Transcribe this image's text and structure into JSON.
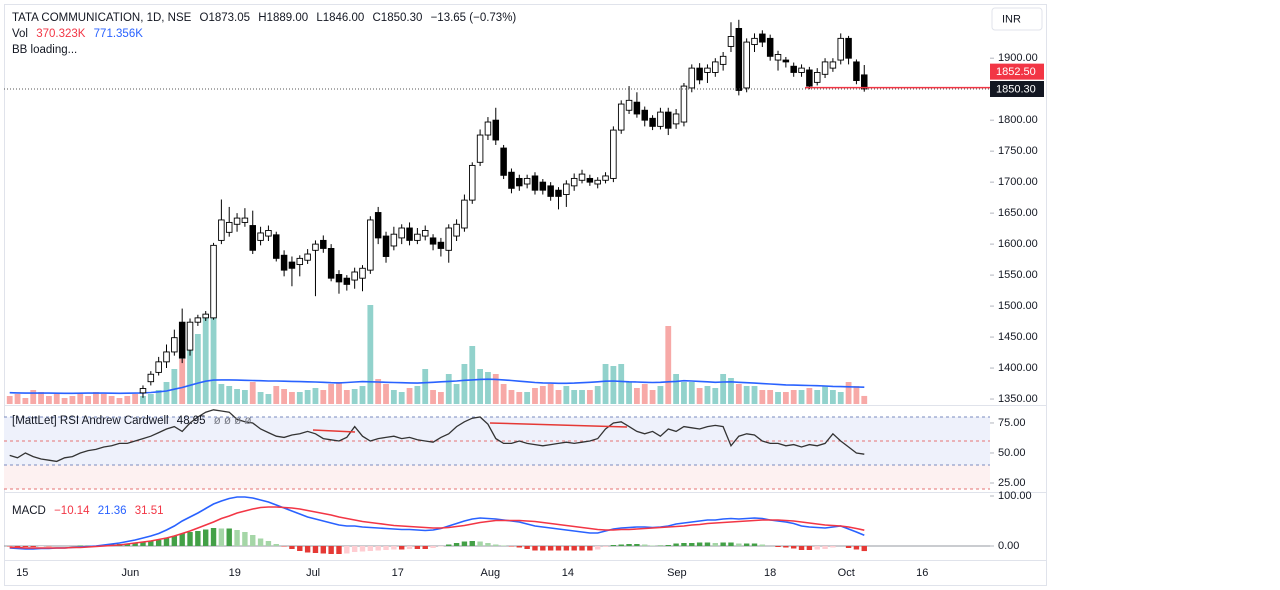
{
  "chart_data": {
    "type": "candlestick",
    "header": {
      "symbol": "TATA COMMUNICATION, 1D, NSE",
      "open_label": "O1873.05",
      "high_label": "H1889.00",
      "low_label": "L1846.00",
      "close_label": "C1850.30",
      "change_label": "−13.65 (−0.73%)"
    },
    "currency": "INR",
    "bb_label": "BB loading...",
    "xticks": [
      {
        "value": 1.6,
        "label": "15"
      },
      {
        "value": 15.4,
        "label": "Jun"
      },
      {
        "value": 28.7,
        "label": "19"
      },
      {
        "value": 38.7,
        "label": "Jul"
      },
      {
        "value": 49.5,
        "label": "17"
      },
      {
        "value": 61.3,
        "label": "Aug"
      },
      {
        "value": 71.2,
        "label": "14"
      },
      {
        "value": 85.1,
        "label": "Sep"
      },
      {
        "value": 97,
        "label": "18"
      },
      {
        "value": 106.7,
        "label": "Oct"
      },
      {
        "value": 116.4,
        "label": "16"
      }
    ],
    "open": [
      null,
      null,
      null,
      null,
      null,
      null,
      null,
      null,
      null,
      null,
      null,
      null,
      null,
      null,
      null,
      null,
      null,
      1360,
      1378,
      1393,
      1410,
      1426,
      1474,
      1429,
      1474,
      1481,
      1481,
      1606,
      1619,
      1632,
      1635,
      1630,
      1606,
      1613,
      1615,
      1582,
      1571,
      1567,
      1574,
      1590,
      1606,
      1593,
      1551,
      1545,
      1542,
      1545,
      1558,
      1651,
      1613,
      1597,
      1610,
      1626,
      1606,
      1613,
      1610,
      1603,
      1590,
      1613,
      1626,
      1671,
      1732,
      1776,
      1800,
      1755,
      1716,
      1706,
      1697,
      1710,
      1700,
      1694,
      1687,
      1680,
      1694,
      1703,
      1706,
      1697,
      1703,
      1706,
      1784,
      1816,
      1829,
      1816,
      1803,
      1790,
      1813,
      1794,
      1797,
      1852,
      1884,
      1877,
      1877,
      1890,
      1919,
      1948,
      1852,
      1922,
      1939,
      1932,
      1897,
      1897,
      1887,
      1877,
      1881,
      1861,
      1874,
      1884,
      1897,
      1932,
      1894,
      1873.05
    ],
    "high": [
      null,
      null,
      null,
      null,
      null,
      null,
      null,
      null,
      null,
      null,
      null,
      null,
      null,
      null,
      null,
      null,
      null,
      1372,
      1395,
      1418,
      1438,
      1462,
      1496,
      1480,
      1486,
      1492,
      1602,
      1672,
      1660,
      1650,
      1658,
      1654,
      1628,
      1630,
      1620,
      1590,
      1580,
      1582,
      1592,
      1606,
      1614,
      1600,
      1558,
      1550,
      1562,
      1566,
      1645,
      1660,
      1620,
      1628,
      1632,
      1635,
      1626,
      1630,
      1616,
      1610,
      1632,
      1640,
      1680,
      1732,
      1785,
      1805,
      1820,
      1760,
      1722,
      1712,
      1712,
      1716,
      1705,
      1700,
      1692,
      1703,
      1714,
      1720,
      1712,
      1708,
      1716,
      1790,
      1832,
      1855,
      1845,
      1822,
      1808,
      1820,
      1820,
      1818,
      1860,
      1890,
      1892,
      1890,
      1900,
      1910,
      1958,
      1962,
      1932,
      1940,
      1945,
      1938,
      1912,
      1902,
      1893,
      1890,
      1886,
      1884,
      1900,
      1900,
      1940,
      1936,
      1898,
      1889
    ],
    "low": [
      null,
      null,
      null,
      null,
      null,
      null,
      null,
      null,
      null,
      null,
      null,
      null,
      null,
      null,
      null,
      null,
      null,
      1352,
      1372,
      1388,
      1400,
      1420,
      1408,
      1420,
      1468,
      1476,
      1478,
      1600,
      1612,
      1620,
      1628,
      1584,
      1598,
      1605,
      1572,
      1548,
      1532,
      1548,
      1568,
      1516,
      1586,
      1540,
      1520,
      1525,
      1528,
      1524,
      1552,
      1600,
      1570,
      1590,
      1600,
      1598,
      1600,
      1606,
      1590,
      1580,
      1570,
      1605,
      1620,
      1665,
      1726,
      1768,
      1760,
      1705,
      1682,
      1686,
      1690,
      1680,
      1680,
      1670,
      1656,
      1660,
      1686,
      1698,
      1694,
      1690,
      1698,
      1700,
      1778,
      1810,
      1804,
      1790,
      1784,
      1785,
      1776,
      1786,
      1790,
      1845,
      1858,
      1860,
      1870,
      1880,
      1910,
      1840,
      1845,
      1910,
      1918,
      1896,
      1880,
      1885,
      1870,
      1870,
      1850,
      1856,
      1868,
      1878,
      1890,
      1890,
      1858,
      1846
    ],
    "close": [
      null,
      null,
      null,
      null,
      null,
      null,
      null,
      null,
      null,
      null,
      null,
      null,
      null,
      null,
      null,
      null,
      null,
      1367,
      1390,
      1410,
      1426,
      1449,
      1416,
      1474,
      1481,
      1487,
      1598,
      1639,
      1635,
      1642,
      1642,
      1590,
      1618,
      1622,
      1577,
      1558,
      1561,
      1577,
      1584,
      1600,
      1593,
      1545,
      1539,
      1535,
      1555,
      1561,
      1639,
      1610,
      1580,
      1616,
      1626,
      1606,
      1616,
      1622,
      1600,
      1593,
      1626,
      1632,
      1671,
      1727,
      1776,
      1797,
      1768,
      1711,
      1690,
      1694,
      1706,
      1687,
      1687,
      1677,
      1677,
      1697,
      1706,
      1713,
      1700,
      1703,
      1710,
      1784,
      1826,
      1832,
      1810,
      1800,
      1790,
      1813,
      1787,
      1810,
      1855,
      1884,
      1865,
      1884,
      1894,
      1903,
      1935,
      1848,
      1926,
      1932,
      1926,
      1903,
      1906,
      1894,
      1877,
      1884,
      1855,
      1877,
      1894,
      1894,
      1932,
      1900,
      1863.95,
      1850.3
    ],
    "up_color": "#ffffff",
    "down_color": "#000000",
    "ylim": [
      1342,
      1981
    ],
    "yticks": [
      {
        "value": 1350,
        "label": "1350.00"
      },
      {
        "value": 1400,
        "label": "1400.00"
      },
      {
        "value": 1450,
        "label": "1450.00"
      },
      {
        "value": 1500,
        "label": "1500.00"
      },
      {
        "value": 1550,
        "label": "1550.00"
      },
      {
        "value": 1600,
        "label": "1600.00"
      },
      {
        "value": 1650,
        "label": "1650.00"
      },
      {
        "value": 1700,
        "label": "1700.00"
      },
      {
        "value": 1750,
        "label": "1750.00"
      },
      {
        "value": 1800,
        "label": "1800.00"
      },
      {
        "value": 1850,
        "label": "1850.00"
      },
      {
        "value": 1900,
        "label": "1900.00"
      }
    ],
    "last_price_label": "1850.30",
    "price_lines": [
      {
        "value": 1852.5,
        "label": "1852.50",
        "color": "#f23645"
      }
    ],
    "volume": {
      "name": "Vol",
      "last_label": "370.323K",
      "label_color": "#f23645",
      "colors": [
        "rgba(38,166,154,0.5)",
        "rgba(239,83,80,0.5)"
      ],
      "values": [
        368000,
        460000,
        276000,
        644000,
        552000,
        368000,
        460000,
        276000,
        368000,
        460000,
        368000,
        552000,
        460000,
        368000,
        276000,
        368000,
        460000,
        368000,
        460000,
        644000,
        1012000,
        1610000,
        2070000,
        2760000,
        3220000,
        4048000,
        4140000,
        920000,
        828000,
        690000,
        644000,
        1012000,
        552000,
        460000,
        828000,
        690000,
        552000,
        552000,
        644000,
        736000,
        644000,
        920000,
        1012000,
        644000,
        690000,
        828000,
        4554000,
        1150000,
        920000,
        644000,
        552000,
        736000,
        828000,
        1610000,
        644000,
        552000,
        1380000,
        920000,
        1840000,
        2668000,
        1610000,
        1472000,
        1380000,
        920000,
        644000,
        552000,
        552000,
        736000,
        828000,
        920000,
        644000,
        828000,
        644000,
        644000,
        644000,
        828000,
        1840000,
        1748000,
        1840000,
        1012000,
        736000,
        920000,
        644000,
        828000,
        3588000,
        1380000,
        1012000,
        1012000,
        736000,
        828000,
        736000,
        1380000,
        1196000,
        920000,
        828000,
        828000,
        644000,
        644000,
        552000,
        552000,
        644000,
        644000,
        736000,
        644000,
        828000,
        644000,
        552000,
        1012000,
        828000,
        370323
      ]
    },
    "volume_ma": {
      "last_label": "771.356K",
      "color": "#2962ff",
      "values": [
        520000,
        510000,
        500000,
        500000,
        505000,
        500000,
        495000,
        490000,
        490000,
        495000,
        500000,
        505000,
        500000,
        495000,
        490000,
        495000,
        500000,
        510000,
        530000,
        560000,
        600000,
        680000,
        760000,
        860000,
        960000,
        1050000,
        1100000,
        1110000,
        1110000,
        1100000,
        1090000,
        1080000,
        1070000,
        1060000,
        1060000,
        1050000,
        1040000,
        1030000,
        1020000,
        1010000,
        1000000,
        980000,
        970000,
        990000,
        1010000,
        1030000,
        1020000,
        1010000,
        1000000,
        990000,
        980000,
        970000,
        960000,
        980000,
        1000000,
        1020000,
        1040000,
        1060000,
        1090000,
        1110000,
        1130000,
        1140000,
        1130000,
        1110000,
        1080000,
        1050000,
        1020000,
        990000,
        970000,
        960000,
        950000,
        950000,
        960000,
        980000,
        1000000,
        1020000,
        1050000,
        1060000,
        1040000,
        1020000,
        1010000,
        1000000,
        990000,
        1000000,
        1020000,
        1040000,
        1070000,
        1060000,
        1040000,
        1020000,
        1000000,
        1010000,
        1020000,
        1000000,
        980000,
        960000,
        940000,
        920000,
        900000,
        880000,
        870000,
        860000,
        850000,
        840000,
        830000,
        810000,
        800000,
        790000,
        780000,
        771356
      ]
    },
    "rsi": {
      "title": "[MattLet] RSI Andrew Cardwell",
      "value_label": "48.95",
      "extra_label": "ø ø ø ø",
      "color": "#333333",
      "values": [
        48,
        46,
        50,
        47,
        45,
        44,
        43,
        46,
        47,
        50,
        52,
        53,
        55,
        56,
        58,
        58,
        60,
        62,
        64,
        67,
        70,
        72,
        68,
        75,
        80,
        84,
        86,
        85,
        84,
        78,
        76,
        75,
        70,
        67,
        64,
        63,
        65,
        66,
        68,
        66,
        62,
        61,
        60,
        63,
        72,
        64,
        60,
        62,
        63,
        64,
        62,
        63,
        61,
        60,
        59,
        63,
        66,
        72,
        76,
        79,
        80,
        74,
        62,
        58,
        58,
        60,
        58,
        57,
        56,
        57,
        58,
        59,
        58,
        59,
        60,
        62,
        70,
        75,
        76,
        72,
        68,
        66,
        68,
        64,
        70,
        68,
        72,
        71,
        70,
        72,
        73,
        72,
        56,
        64,
        66,
        65,
        60,
        58,
        58,
        56,
        57,
        55,
        57,
        56,
        58,
        66,
        60,
        55,
        50,
        48.95
      ],
      "ylim": [
        17.5,
        85.8
      ],
      "yticks": [
        {
          "value": 25,
          "label": "25.00"
        },
        {
          "value": 50,
          "label": "50.00"
        },
        {
          "value": 75,
          "label": "75.00"
        }
      ],
      "levels": [
        80,
        60,
        40,
        20
      ],
      "level_colors": [
        "#7a8bbf",
        "#e57373",
        "#7a8bbf",
        "#e57373"
      ]
    },
    "macd": {
      "title": "MACD",
      "hist_label": "−10.14",
      "macd_label": "21.36",
      "signal_label": "31.51",
      "macd": {
        "color": "#2962ff",
        "values": [
          -4,
          -5,
          -6,
          -6,
          -5,
          -5,
          -4,
          -4,
          -3,
          -2,
          -1,
          0,
          2,
          4,
          6,
          9,
          12,
          16,
          20,
          25,
          32,
          40,
          50,
          58,
          66,
          75,
          84,
          90,
          95,
          98,
          98,
          96,
          92,
          88,
          82,
          76,
          70,
          64,
          58,
          54,
          50,
          46,
          42,
          40,
          40,
          38,
          37,
          36,
          35,
          34,
          33,
          33,
          32,
          31,
          32,
          35,
          40,
          45,
          50,
          54,
          56,
          55,
          54,
          52,
          50,
          48,
          44,
          40,
          38,
          36,
          34,
          32,
          30,
          28,
          26,
          26,
          30,
          34,
          36,
          37,
          38,
          38,
          37,
          38,
          40,
          44,
          46,
          48,
          50,
          52,
          52,
          54,
          55,
          54,
          55,
          56,
          55,
          52,
          50,
          48,
          45,
          40,
          38,
          37,
          36,
          38,
          40,
          34,
          28,
          21.36
        ]
      },
      "signal": {
        "color": "#f23645",
        "values": [
          -3,
          -3,
          -4,
          -4,
          -4,
          -4,
          -4,
          -4,
          -3,
          -3,
          -2,
          -1,
          0,
          1,
          2,
          4,
          6,
          8,
          10,
          13,
          16,
          20,
          25,
          30,
          36,
          42,
          48,
          55,
          60,
          66,
          70,
          74,
          77,
          78,
          78,
          77,
          76,
          74,
          71,
          68,
          65,
          62,
          58,
          55,
          52,
          49,
          47,
          45,
          43,
          41,
          40,
          39,
          38,
          37,
          36,
          36,
          37,
          39,
          41,
          44,
          47,
          49,
          51,
          51,
          51,
          51,
          50,
          49,
          47,
          45,
          43,
          41,
          39,
          37,
          35,
          33,
          32,
          32,
          33,
          33,
          34,
          35,
          36,
          37,
          38,
          39,
          40,
          42,
          43,
          45,
          46,
          47,
          48,
          49,
          50,
          51,
          52,
          52,
          52,
          51,
          50,
          48,
          46,
          44,
          42,
          41,
          40,
          38,
          35,
          31.51
        ]
      },
      "hist": {
        "colors": [
          "#43a047",
          "#a5d6a7",
          "#e53935",
          "#ffcdd2"
        ],
        "values": [
          -1,
          -2,
          -2,
          -2,
          -1,
          -1,
          0,
          0,
          0,
          1,
          1,
          1,
          2,
          3,
          4,
          5,
          6,
          8,
          10,
          12,
          16,
          20,
          25,
          28,
          30,
          33,
          36,
          35,
          35,
          32,
          28,
          22,
          15,
          10,
          4,
          -1,
          -6,
          -10,
          -13,
          -14,
          -15,
          -16,
          -16,
          -15,
          -12,
          -11,
          -10,
          -9,
          -8,
          -7,
          -7,
          -6,
          -6,
          -6,
          -4,
          -1,
          3,
          6,
          9,
          10,
          9,
          6,
          3,
          1,
          -1,
          -3,
          -6,
          -9,
          -9,
          -9,
          -9,
          -9,
          -9,
          -9,
          -9,
          -7,
          -2,
          2,
          3,
          4,
          4,
          3,
          1,
          1,
          2,
          5,
          6,
          6,
          7,
          7,
          6,
          7,
          7,
          5,
          5,
          5,
          3,
          0,
          -2,
          -3,
          -5,
          -8,
          -8,
          -7,
          -6,
          -3,
          0,
          -4,
          -7,
          -10.14
        ]
      },
      "ylim": [
        -28,
        106
      ],
      "yticks": [
        {
          "value": 0,
          "label": "0.00"
        },
        {
          "value": 100,
          "label": "100.00"
        }
      ]
    }
  }
}
